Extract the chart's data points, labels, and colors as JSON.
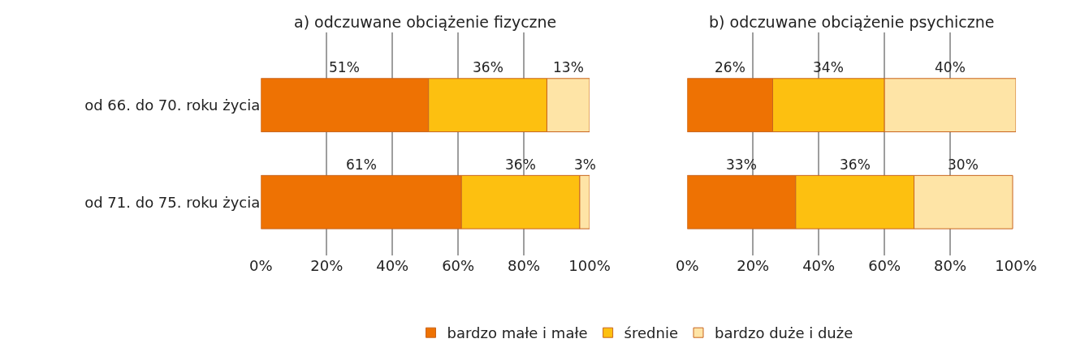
{
  "chart_data": [
    {
      "type": "bar",
      "orientation": "horizontal",
      "stacked": true,
      "title": "a) odczuwane obciążenie fizyczne",
      "categories": [
        "od 66. do 70. roku życia",
        "od 71. do 75. roku życia"
      ],
      "series": [
        {
          "name": "bardzo małe i małe",
          "color": "#ee7203",
          "values": [
            51,
            61
          ],
          "value_labels": [
            "51%",
            "61%"
          ]
        },
        {
          "name": "średnie",
          "color": "#fdc010",
          "values": [
            36,
            36
          ],
          "value_labels": [
            "36%",
            "36%"
          ]
        },
        {
          "name": "bardzo duże i duże",
          "color": "#fee4a6",
          "values": [
            13,
            3
          ],
          "value_labels": [
            "13%",
            "3%"
          ]
        }
      ],
      "xlim": [
        0,
        100
      ],
      "xticks": [
        {
          "value": 0,
          "label": "0%"
        },
        {
          "value": 20,
          "label": "20%"
        },
        {
          "value": 40,
          "label": "40%"
        },
        {
          "value": 60,
          "label": "60%"
        },
        {
          "value": 80,
          "label": "80%"
        },
        {
          "value": 100,
          "label": "100%"
        }
      ],
      "grid": "x",
      "legend": "bottom"
    },
    {
      "type": "bar",
      "orientation": "horizontal",
      "stacked": true,
      "title": "b) odczuwane obciążenie psychiczne",
      "categories": [
        null,
        null
      ],
      "series": [
        {
          "color": "#ee7203",
          "values": [
            26,
            33
          ],
          "value_labels": [
            "26%",
            "33%"
          ]
        },
        {
          "color": "#fdc010",
          "values": [
            34,
            36
          ],
          "value_labels": [
            "34%",
            "36%"
          ]
        },
        {
          "color": "#fee4a6",
          "values": [
            40,
            30
          ],
          "value_labels": [
            "40%",
            "30%"
          ]
        }
      ],
      "xlim": [
        0,
        100
      ],
      "xticks": [
        {
          "value": 0,
          "label": "0%"
        },
        {
          "value": 20,
          "label": "20%"
        },
        {
          "value": 40,
          "label": "40%"
        },
        {
          "value": 60,
          "label": "60%"
        },
        {
          "value": 80,
          "label": "80%"
        },
        {
          "value": 100,
          "label": "100%"
        }
      ],
      "grid": "x",
      "tick_labels": "x"
    }
  ]
}
